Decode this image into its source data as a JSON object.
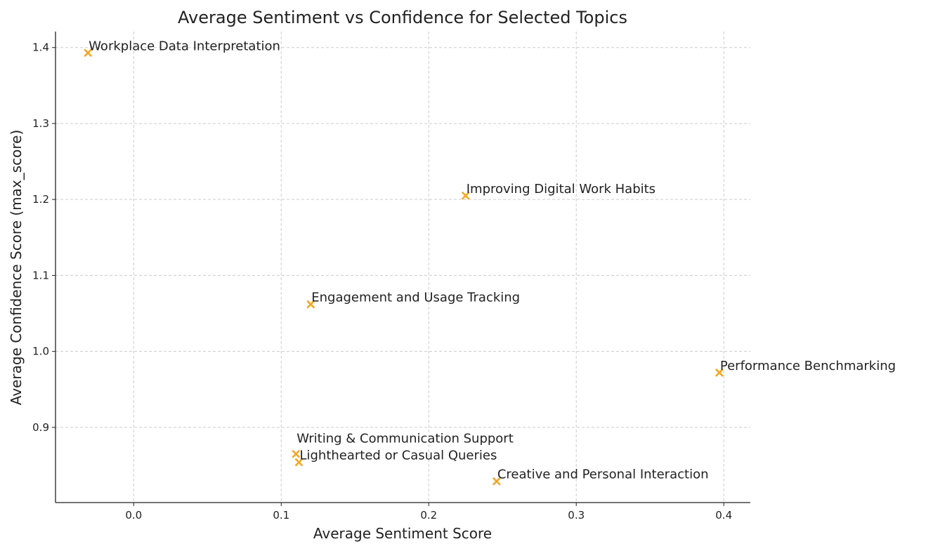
{
  "chart_data": {
    "type": "scatter",
    "title": "Average Sentiment vs Confidence for Selected Topics",
    "xlabel": "Average Sentiment Score",
    "ylabel": "Average Confidence Score (max_score)",
    "xlim": [
      -0.053,
      0.418
    ],
    "ylim": [
      0.801,
      1.421
    ],
    "xticks": [
      0.0,
      0.1,
      0.2,
      0.3,
      0.4
    ],
    "xtick_labels": [
      "0.0",
      "0.1",
      "0.2",
      "0.3",
      "0.4"
    ],
    "yticks": [
      0.9,
      1.0,
      1.1,
      1.2,
      1.3,
      1.4
    ],
    "ytick_labels": [
      "0.9",
      "1.0",
      "1.1",
      "1.2",
      "1.3",
      "1.4"
    ],
    "grid": true,
    "marker": "x",
    "color": "#F5A623",
    "points": [
      {
        "label": "Workplace Data Interpretation",
        "x": -0.031,
        "y": 1.393
      },
      {
        "label": "Improving Digital Work Habits",
        "x": 0.225,
        "y": 1.205
      },
      {
        "label": "Engagement and Usage Tracking",
        "x": 0.12,
        "y": 1.062
      },
      {
        "label": "Performance Benchmarking",
        "x": 0.397,
        "y": 0.972
      },
      {
        "label": "Writing & Communication Support",
        "x": 0.11,
        "y": 0.865
      },
      {
        "label": "Lighthearted or Casual Queries",
        "x": 0.112,
        "y": 0.854
      },
      {
        "label": "Creative and Personal Interaction",
        "x": 0.246,
        "y": 0.829
      }
    ]
  }
}
